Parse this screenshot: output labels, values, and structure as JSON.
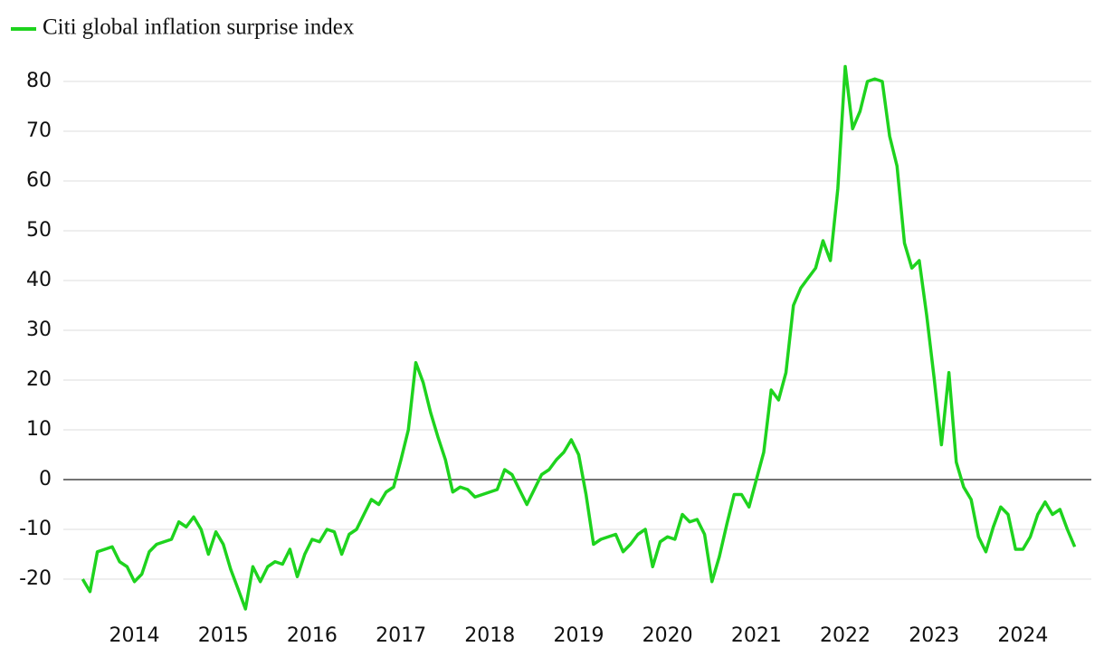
{
  "chart_data": {
    "type": "line",
    "series": [
      {
        "name": "Citi global inflation surprise index",
        "color": "#1ed31e",
        "values": [
          -20,
          -22.5,
          -14.5,
          -14,
          -13.5,
          -16.5,
          -17.5,
          -20.5,
          -19,
          -14.5,
          -13,
          -12.5,
          -12,
          -8.5,
          -9.5,
          -7.5,
          -10,
          -15,
          -10.5,
          -13,
          -18,
          -22,
          -26,
          -17.5,
          -20.5,
          -17.5,
          -16.5,
          -17,
          -14,
          -19.5,
          -15,
          -12,
          -12.5,
          -10,
          -10.5,
          -15,
          -11,
          -10,
          -7,
          -4,
          -5,
          -2.5,
          -1.5,
          4,
          10,
          23.5,
          19.5,
          13.5,
          8.5,
          4,
          -2.5,
          -1.5,
          -2,
          -3.5,
          -3,
          -2.5,
          -2,
          2,
          1,
          -2,
          -5,
          -2,
          1,
          2,
          4,
          5.5,
          8,
          5,
          -3,
          -13,
          -12,
          -11.5,
          -11,
          -14.5,
          -13,
          -11,
          -10,
          -17.5,
          -12.5,
          -11.5,
          -12,
          -7,
          -8.5,
          -8,
          -11,
          -20.5,
          -15.5,
          -9,
          -3,
          -3,
          -5.5,
          0,
          5.5,
          18,
          16,
          21.5,
          35,
          38.5,
          40.5,
          42.5,
          48,
          44,
          58.5,
          83,
          70.5,
          74,
          80,
          80.5,
          80,
          69,
          63,
          47.5,
          42.5,
          44,
          33,
          20.5,
          7,
          21.5,
          3.5,
          -1.5,
          -4,
          -11.5,
          -14.5,
          -9.5,
          -5.5,
          -7,
          -14,
          -14,
          -11.5,
          -7,
          -4.5,
          -7,
          -6,
          -10,
          -13.5
        ]
      }
    ],
    "x": [
      2013.417,
      2013.5,
      2013.583,
      2013.667,
      2013.75,
      2013.833,
      2013.917,
      2014,
      2014.083,
      2014.167,
      2014.25,
      2014.333,
      2014.417,
      2014.5,
      2014.583,
      2014.667,
      2014.75,
      2014.833,
      2014.917,
      2015,
      2015.083,
      2015.167,
      2015.25,
      2015.333,
      2015.417,
      2015.5,
      2015.583,
      2015.667,
      2015.75,
      2015.833,
      2015.917,
      2016,
      2016.083,
      2016.167,
      2016.25,
      2016.333,
      2016.417,
      2016.5,
      2016.583,
      2016.667,
      2016.75,
      2016.833,
      2016.917,
      2017,
      2017.083,
      2017.167,
      2017.25,
      2017.333,
      2017.417,
      2017.5,
      2017.583,
      2017.667,
      2017.75,
      2017.833,
      2017.917,
      2018,
      2018.083,
      2018.167,
      2018.25,
      2018.333,
      2018.417,
      2018.5,
      2018.583,
      2018.667,
      2018.75,
      2018.833,
      2018.917,
      2019,
      2019.083,
      2019.167,
      2019.25,
      2019.333,
      2019.417,
      2019.5,
      2019.583,
      2019.667,
      2019.75,
      2019.833,
      2019.917,
      2020,
      2020.083,
      2020.167,
      2020.25,
      2020.333,
      2020.417,
      2020.5,
      2020.583,
      2020.667,
      2020.75,
      2020.833,
      2020.917,
      2021,
      2021.083,
      2021.167,
      2021.25,
      2021.333,
      2021.417,
      2021.5,
      2021.583,
      2021.667,
      2021.75,
      2021.833,
      2021.917,
      2022,
      2022.083,
      2022.167,
      2022.25,
      2022.333,
      2022.417,
      2022.5,
      2022.583,
      2022.667,
      2022.75,
      2022.833,
      2022.917,
      2023,
      2023.083,
      2023.167,
      2023.25,
      2023.333,
      2023.417,
      2023.5,
      2023.583,
      2023.667,
      2023.75,
      2023.833,
      2023.917,
      2024,
      2024.083,
      2024.167,
      2024.25,
      2024.333,
      2024.417,
      2024.5,
      2024.583
    ],
    "xlim": [
      2013.2,
      2024.77
    ],
    "xticks": [
      2014,
      2015,
      2016,
      2017,
      2018,
      2019,
      2020,
      2021,
      2022,
      2023,
      2024
    ],
    "ylim": [
      -27,
      85
    ],
    "yticks": [
      -20,
      -10,
      0,
      10,
      20,
      30,
      40,
      50,
      60,
      70,
      80
    ],
    "grid": true
  }
}
